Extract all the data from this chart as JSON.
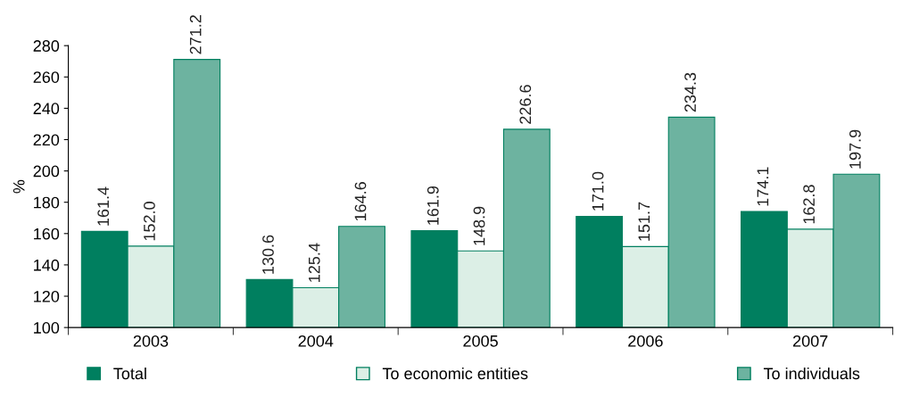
{
  "chart_data": {
    "type": "bar",
    "ylabel": "%",
    "categories": [
      "2003",
      "2004",
      "2005",
      "2006",
      "2007"
    ],
    "series": [
      {
        "name": "Total",
        "color": "#007f5f",
        "values": [
          161.4,
          130.6,
          161.9,
          171.0,
          174.1
        ],
        "value_labels": [
          "161.4",
          "130.6",
          "161.9",
          "171.0",
          "174.1"
        ]
      },
      {
        "name": "To economic entities",
        "color": "#dcefe6",
        "values": [
          152.0,
          125.4,
          148.9,
          151.7,
          162.8
        ],
        "value_labels": [
          "152.0",
          "125.4",
          "148.9",
          "151.7",
          "162.8"
        ]
      },
      {
        "name": "To individuals",
        "color": "#6db3a0",
        "values": [
          271.2,
          164.6,
          226.6,
          234.3,
          197.9
        ],
        "value_labels": [
          "271.2",
          "164.6",
          "226.6",
          "234.3",
          "197.9"
        ]
      }
    ],
    "ylim": [
      100,
      280
    ],
    "yticks": [
      100,
      120,
      140,
      160,
      180,
      200,
      220,
      240,
      260,
      280
    ],
    "grid": false,
    "legend": "bottom"
  }
}
